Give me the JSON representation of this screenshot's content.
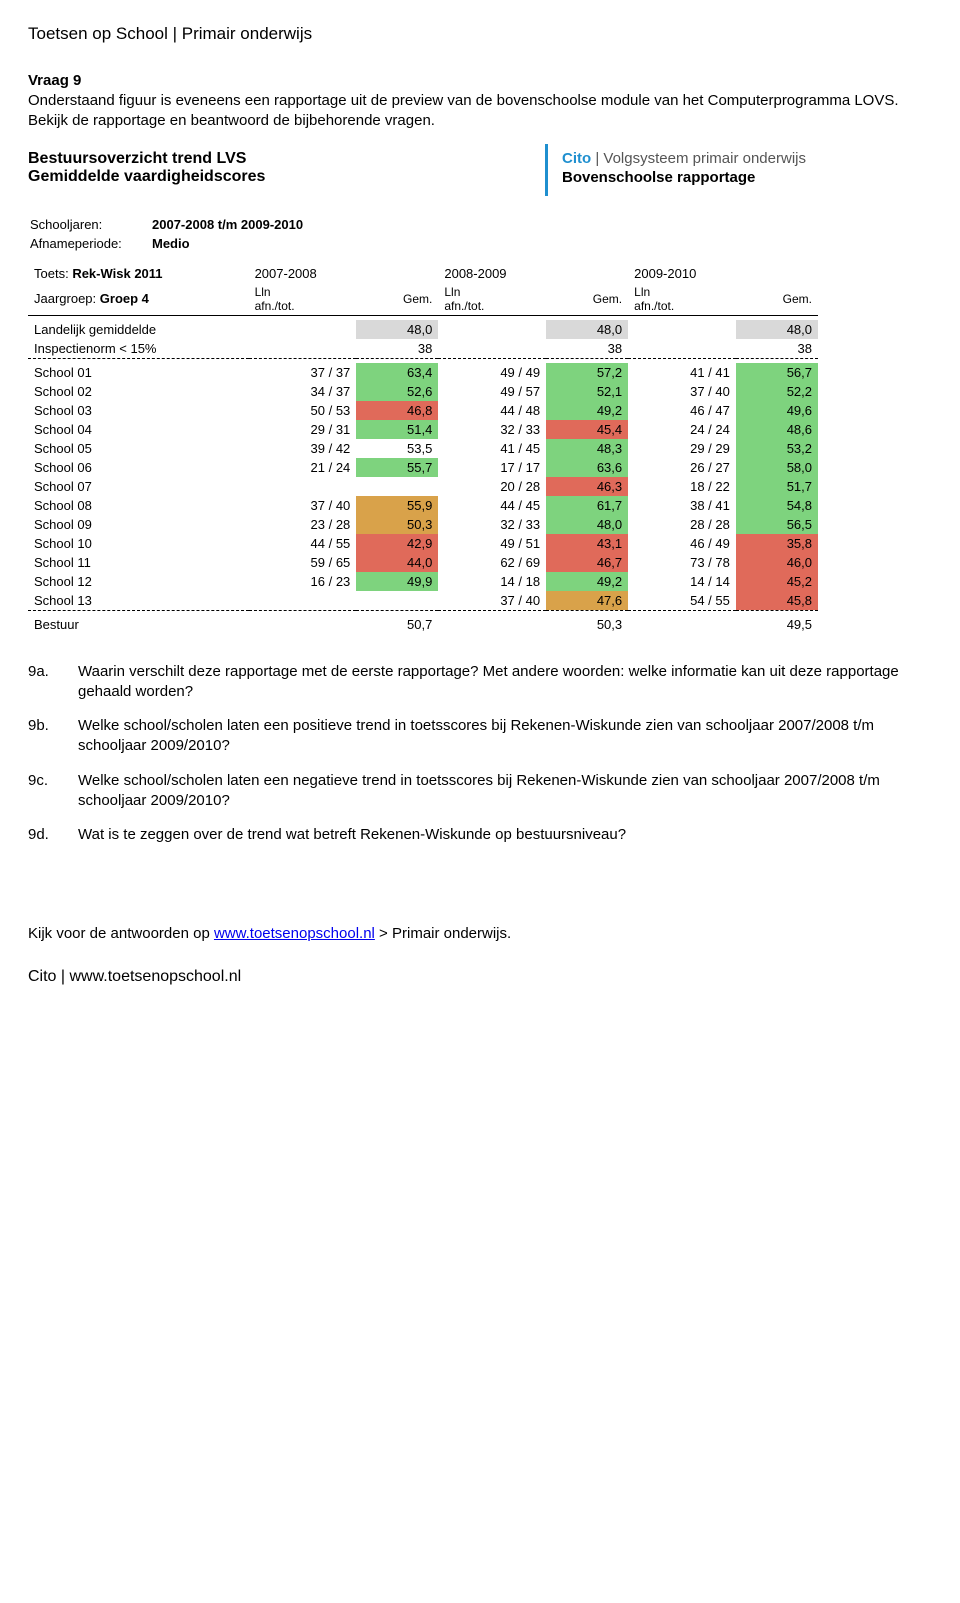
{
  "page_header": "Toetsen op School | Primair onderwijs",
  "question": {
    "heading": "Vraag 9",
    "intro": "Onderstaand figuur is eveneens een rapportage uit de preview van de bovenschoolse module van het Computerprogramma LOVS. Bekijk de rapportage en beantwoord de bijbehorende vragen."
  },
  "report": {
    "title_line1": "Bestuursoverzicht trend LVS",
    "title_line2": "Gemiddelde vaardigheidscores",
    "cito_brand": "Cito",
    "cito_sep": " | ",
    "cito_tail": "Volgsysteem primair onderwijs",
    "cito_sub": "Bovenschoolse rapportage",
    "meta": {
      "schooljaren_label": "Schooljaren:",
      "schooljaren_value": "2007-2008 t/m 2009-2010",
      "afname_label": "Afnameperiode:",
      "afname_value": "Medio",
      "toets_label": "Toets:",
      "toets_value": "Rek-Wisk 2011",
      "jaargroep_label": "Jaargroep:",
      "jaargroep_value": "Groep 4"
    },
    "columns": {
      "years": [
        "2007-2008",
        "2008-2009",
        "2009-2010"
      ],
      "sub_lln": "Lln\nafn./tot.",
      "sub_gem": "Gem."
    },
    "rows_top": [
      {
        "label": "Landelijk gemiddelde",
        "cells": [
          [
            "",
            "48,0",
            "gray"
          ],
          [
            "",
            "48,0",
            "gray"
          ],
          [
            "",
            "48,0",
            "gray"
          ]
        ]
      },
      {
        "label": "Inspectienorm < 15%",
        "cells": [
          [
            "",
            "38",
            ""
          ],
          [
            "",
            "38",
            ""
          ],
          [
            "",
            "38",
            ""
          ]
        ]
      }
    ],
    "rows_schools": [
      {
        "label": "School 01",
        "cells": [
          [
            "37 / 37",
            "63,4",
            "green"
          ],
          [
            "49 / 49",
            "57,2",
            "green"
          ],
          [
            "41 / 41",
            "56,7",
            "green"
          ]
        ]
      },
      {
        "label": "School 02",
        "cells": [
          [
            "34 / 37",
            "52,6",
            "green"
          ],
          [
            "49 / 57",
            "52,1",
            "green"
          ],
          [
            "37 / 40",
            "52,2",
            "green"
          ]
        ]
      },
      {
        "label": "School 03",
        "cells": [
          [
            "50 / 53",
            "46,8",
            "red"
          ],
          [
            "44 / 48",
            "49,2",
            "green"
          ],
          [
            "46 / 47",
            "49,6",
            "green"
          ]
        ]
      },
      {
        "label": "School 04",
        "cells": [
          [
            "29 / 31",
            "51,4",
            "green"
          ],
          [
            "32 / 33",
            "45,4",
            "red"
          ],
          [
            "24 / 24",
            "48,6",
            "green"
          ]
        ]
      },
      {
        "label": "School 05",
        "cells": [
          [
            "39 / 42",
            "53,5",
            ""
          ],
          [
            "41 / 45",
            "48,3",
            "green"
          ],
          [
            "29 / 29",
            "53,2",
            "green"
          ]
        ]
      },
      {
        "label": "School 06",
        "cells": [
          [
            "21 / 24",
            "55,7",
            "green"
          ],
          [
            "17 / 17",
            "63,6",
            "green"
          ],
          [
            "26 / 27",
            "58,0",
            "green"
          ]
        ]
      },
      {
        "label": "School 07",
        "cells": [
          [
            "",
            "",
            ""
          ],
          [
            "20 / 28",
            "46,3",
            "red"
          ],
          [
            "18 / 22",
            "51,7",
            "green"
          ]
        ]
      },
      {
        "label": "School 08",
        "cells": [
          [
            "37 / 40",
            "55,9",
            "amber"
          ],
          [
            "44 / 45",
            "61,7",
            "green"
          ],
          [
            "38 / 41",
            "54,8",
            "green"
          ]
        ]
      },
      {
        "label": "School 09",
        "cells": [
          [
            "23 / 28",
            "50,3",
            "amber"
          ],
          [
            "32 / 33",
            "48,0",
            "green"
          ],
          [
            "28 / 28",
            "56,5",
            "green"
          ]
        ]
      },
      {
        "label": "School 10",
        "cells": [
          [
            "44 / 55",
            "42,9",
            "red"
          ],
          [
            "49 / 51",
            "43,1",
            "red"
          ],
          [
            "46 / 49",
            "35,8",
            "red"
          ]
        ]
      },
      {
        "label": "School 11",
        "cells": [
          [
            "59 / 65",
            "44,0",
            "red"
          ],
          [
            "62 / 69",
            "46,7",
            "red"
          ],
          [
            "73 / 78",
            "46,0",
            "red"
          ]
        ]
      },
      {
        "label": "School 12",
        "cells": [
          [
            "16 / 23",
            "49,9",
            "green"
          ],
          [
            "14 / 18",
            "49,2",
            "green"
          ],
          [
            "14 / 14",
            "45,2",
            "red"
          ]
        ]
      },
      {
        "label": "School 13",
        "cells": [
          [
            "",
            "",
            ""
          ],
          [
            "37 / 40",
            "47,6",
            "amber"
          ],
          [
            "54 / 55",
            "45,8",
            "red"
          ]
        ]
      }
    ],
    "row_bestuur": {
      "label": "Bestuur",
      "cells": [
        [
          "",
          "50,7",
          ""
        ],
        [
          "",
          "50,3",
          ""
        ],
        [
          "",
          "49,5",
          ""
        ]
      ]
    },
    "colors": {
      "green": "#7ed37e",
      "amber": "#d9a24a",
      "red": "#e06a5a",
      "gray": "#d9d9d9"
    }
  },
  "subquestions": [
    {
      "num": "9a.",
      "text": "Waarin verschilt deze rapportage met de eerste rapportage? Met andere woorden: welke informatie kan uit deze rapportage gehaald worden?"
    },
    {
      "num": "9b.",
      "text": "Welke school/scholen laten een positieve trend in toetsscores bij Rekenen-Wiskunde zien van schooljaar 2007/2008 t/m schooljaar 2009/2010?"
    },
    {
      "num": "9c.",
      "text": "Welke school/scholen laten een negatieve trend in toetsscores bij Rekenen-Wiskunde zien van schooljaar 2007/2008 t/m schooljaar 2009/2010?"
    },
    {
      "num": "9d.",
      "text": "Wat is te zeggen over de trend wat betreft Rekenen-Wiskunde op bestuursniveau?"
    }
  ],
  "footer": {
    "prefix": "Kijk voor de antwoorden op ",
    "link_text": "www.toetsenopschool.nl",
    "suffix": " > Primair onderwijs.",
    "cito": "Cito | www.toetsenopschool.nl"
  }
}
